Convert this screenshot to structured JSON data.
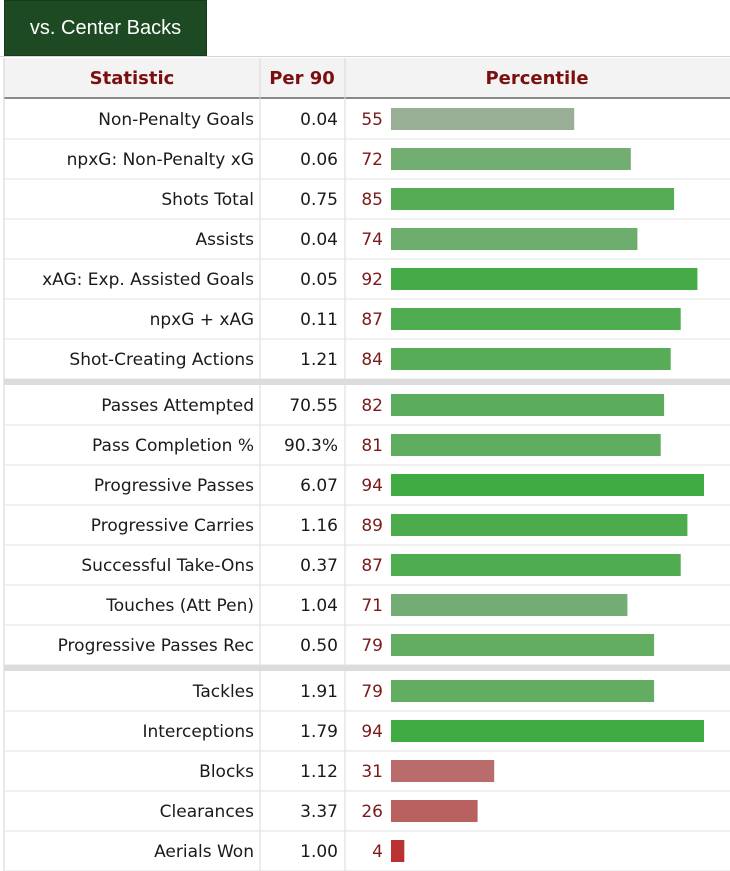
{
  "tab": {
    "label": "vs. Center Backs"
  },
  "headers": {
    "statistic": "Statistic",
    "per90": "Per 90",
    "percentile": "Percentile"
  },
  "colors": {
    "tab_bg": "#1e4a23",
    "header_text": "#7b0f0f",
    "percentile_text": "#7b1a1a"
  },
  "chart_data": {
    "type": "bar",
    "orientation": "horizontal",
    "xlim": [
      0,
      100
    ],
    "groups": [
      {
        "rows": [
          {
            "stat": "Non-Penalty Goals",
            "per90": "0.04",
            "percentile": 55
          },
          {
            "stat": "npxG: Non-Penalty xG",
            "per90": "0.06",
            "percentile": 72
          },
          {
            "stat": "Shots Total",
            "per90": "0.75",
            "percentile": 85
          },
          {
            "stat": "Assists",
            "per90": "0.04",
            "percentile": 74
          },
          {
            "stat": "xAG: Exp. Assisted Goals",
            "per90": "0.05",
            "percentile": 92
          },
          {
            "stat": "npxG + xAG",
            "per90": "0.11",
            "percentile": 87
          },
          {
            "stat": "Shot-Creating Actions",
            "per90": "1.21",
            "percentile": 84
          }
        ]
      },
      {
        "rows": [
          {
            "stat": "Passes Attempted",
            "per90": "70.55",
            "percentile": 82
          },
          {
            "stat": "Pass Completion %",
            "per90": "90.3%",
            "percentile": 81
          },
          {
            "stat": "Progressive Passes",
            "per90": "6.07",
            "percentile": 94
          },
          {
            "stat": "Progressive Carries",
            "per90": "1.16",
            "percentile": 89
          },
          {
            "stat": "Successful Take-Ons",
            "per90": "0.37",
            "percentile": 87
          },
          {
            "stat": "Touches (Att Pen)",
            "per90": "1.04",
            "percentile": 71
          },
          {
            "stat": "Progressive Passes Rec",
            "per90": "0.50",
            "percentile": 79
          }
        ]
      },
      {
        "rows": [
          {
            "stat": "Tackles",
            "per90": "1.91",
            "percentile": 79
          },
          {
            "stat": "Interceptions",
            "per90": "1.79",
            "percentile": 94
          },
          {
            "stat": "Blocks",
            "per90": "1.12",
            "percentile": 31
          },
          {
            "stat": "Clearances",
            "per90": "3.37",
            "percentile": 26
          },
          {
            "stat": "Aerials Won",
            "per90": "1.00",
            "percentile": 4
          }
        ]
      }
    ]
  }
}
